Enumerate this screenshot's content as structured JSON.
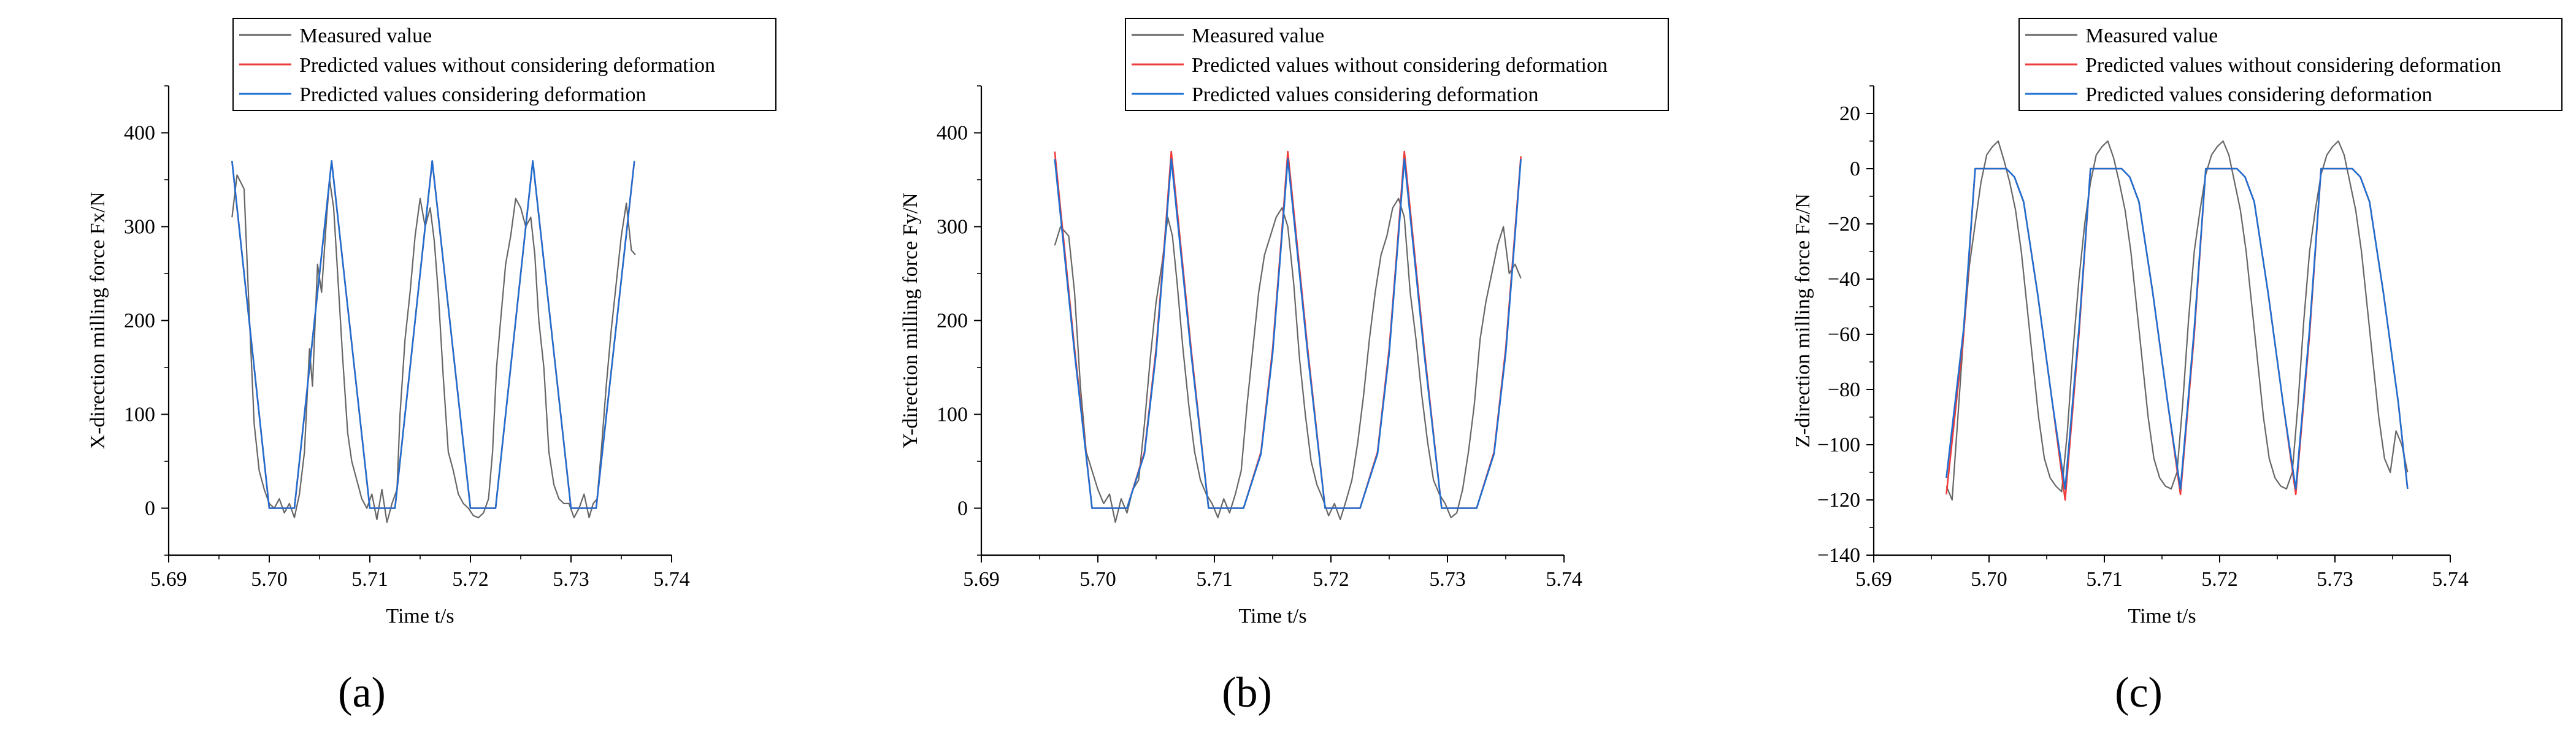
{
  "figure": {
    "panels": [
      "(a)",
      "(b)",
      "(c)"
    ]
  },
  "colors": {
    "measured": "#666666",
    "pred_no_deform": "#ef3b3b",
    "pred_deform": "#1f6fd1",
    "axis": "#000000"
  },
  "chart_data": [
    {
      "type": "line",
      "panel_label": "(a)",
      "xlabel": "Time t/s",
      "ylabel": "X-direction milling force Fx/N",
      "xlim": [
        5.69,
        5.74
      ],
      "ylim": [
        -50,
        450
      ],
      "xticks": [
        5.69,
        5.7,
        5.71,
        5.72,
        5.73,
        5.74
      ],
      "xtick_labels": [
        "5.69",
        "5.70",
        "5.71",
        "5.72",
        "5.73",
        "5.74"
      ],
      "yticks": [
        0,
        100,
        200,
        300,
        400
      ],
      "ytick_labels": [
        "0",
        "100",
        "200",
        "300",
        "400"
      ],
      "legend": {
        "placement": "top-center",
        "entries": [
          "Measured value",
          "Predicted values without considering deformation",
          "Predicted values considering deformation"
        ]
      },
      "series": [
        {
          "name": "Measured value",
          "color": "#666666",
          "x": [
            5.6963,
            5.6968,
            5.6975,
            5.698,
            5.6985,
            5.699,
            5.6995,
            5.7,
            5.7005,
            5.701,
            5.7015,
            5.702,
            5.7025,
            5.703,
            5.7035,
            5.704,
            5.7043,
            5.7048,
            5.7052,
            5.7057,
            5.706,
            5.7064,
            5.7068,
            5.7073,
            5.7078,
            5.7082,
            5.7087,
            5.7092,
            5.7097,
            5.7102,
            5.7107,
            5.7112,
            5.7117,
            5.7122,
            5.7127,
            5.713,
            5.7135,
            5.714,
            5.7145,
            5.715,
            5.7155,
            5.716,
            5.7164,
            5.7168,
            5.7173,
            5.7178,
            5.7183,
            5.7188,
            5.7193,
            5.7198,
            5.7203,
            5.7208,
            5.7213,
            5.7218,
            5.7222,
            5.7226,
            5.723,
            5.7235,
            5.724,
            5.7245,
            5.725,
            5.7255,
            5.726,
            5.7264,
            5.7268,
            5.7273,
            5.7278,
            5.7283,
            5.7288,
            5.7293,
            5.7298,
            5.7303,
            5.7308,
            5.7313,
            5.7318,
            5.7322,
            5.7326,
            5.733,
            5.7335,
            5.734,
            5.7345,
            5.735,
            5.7355,
            5.736,
            5.7364
          ],
          "y": [
            310,
            355,
            340,
            210,
            90,
            40,
            20,
            5,
            0,
            10,
            -5,
            5,
            -10,
            15,
            60,
            170,
            130,
            260,
            230,
            310,
            350,
            320,
            250,
            160,
            80,
            50,
            30,
            10,
            0,
            15,
            -12,
            20,
            -15,
            5,
            20,
            100,
            180,
            230,
            290,
            330,
            300,
            320,
            285,
            230,
            140,
            60,
            40,
            15,
            5,
            0,
            -8,
            -10,
            -5,
            10,
            60,
            150,
            200,
            260,
            290,
            330,
            320,
            300,
            310,
            270,
            200,
            150,
            60,
            25,
            10,
            5,
            5,
            -10,
            0,
            15,
            -10,
            5,
            10,
            60,
            130,
            190,
            240,
            290,
            325,
            275,
            270
          ]
        },
        {
          "name": "Predicted values without considering deformation",
          "color": "#ef3b3b",
          "x": [
            5.6963,
            5.7,
            5.7025,
            5.7062,
            5.71,
            5.7125,
            5.7162,
            5.72,
            5.7225,
            5.7262,
            5.73,
            5.7325,
            5.7363
          ],
          "y": [
            370,
            0,
            0,
            370,
            0,
            0,
            370,
            0,
            0,
            370,
            0,
            0,
            370
          ]
        },
        {
          "name": "Predicted values considering deformation",
          "color": "#1f6fd1",
          "x": [
            5.6963,
            5.7,
            5.7025,
            5.7062,
            5.71,
            5.7125,
            5.7162,
            5.72,
            5.7225,
            5.7262,
            5.73,
            5.7325,
            5.7363
          ],
          "y": [
            370,
            0,
            0,
            370,
            0,
            0,
            370,
            0,
            0,
            370,
            0,
            0,
            370
          ]
        }
      ]
    },
    {
      "type": "line",
      "panel_label": "(b)",
      "xlabel": "Time t/s",
      "ylabel": "Y-direction milling force  Fy/N",
      "xlim": [
        5.69,
        5.74
      ],
      "ylim": [
        -50,
        450
      ],
      "xticks": [
        5.69,
        5.7,
        5.71,
        5.72,
        5.73,
        5.74
      ],
      "xtick_labels": [
        "5.69",
        "5.70",
        "5.71",
        "5.72",
        "5.73",
        "5.74"
      ],
      "yticks": [
        0,
        100,
        200,
        300,
        400
      ],
      "ytick_labels": [
        "0",
        "100",
        "200",
        "300",
        "400"
      ],
      "legend": {
        "placement": "top-center",
        "entries": [
          "Measured value",
          "Predicted values without considering deformation",
          "Predicted values considering deformation"
        ]
      },
      "series": [
        {
          "name": "Measured value",
          "color": "#666666",
          "x": [
            5.6963,
            5.6968,
            5.6975,
            5.698,
            5.6985,
            5.699,
            5.6995,
            5.7,
            5.7005,
            5.701,
            5.7015,
            5.702,
            5.7025,
            5.703,
            5.7035,
            5.704,
            5.7045,
            5.705,
            5.7055,
            5.706,
            5.7064,
            5.7068,
            5.7073,
            5.7078,
            5.7083,
            5.7088,
            5.7093,
            5.7098,
            5.7103,
            5.7108,
            5.7113,
            5.7118,
            5.7123,
            5.7128,
            5.7133,
            5.7138,
            5.7143,
            5.7148,
            5.7153,
            5.7158,
            5.7163,
            5.7168,
            5.7173,
            5.7178,
            5.7183,
            5.7188,
            5.7193,
            5.7198,
            5.7203,
            5.7208,
            5.7213,
            5.7218,
            5.7223,
            5.7228,
            5.7233,
            5.7238,
            5.7243,
            5.7248,
            5.7253,
            5.7258,
            5.7263,
            5.7268,
            5.7273,
            5.7278,
            5.7283,
            5.7288,
            5.7293,
            5.7298,
            5.7303,
            5.7308,
            5.7313,
            5.7318,
            5.7323,
            5.7328,
            5.7333,
            5.7338,
            5.7343,
            5.7348,
            5.7353,
            5.7358,
            5.7363
          ],
          "y": [
            280,
            300,
            290,
            230,
            130,
            60,
            40,
            20,
            5,
            15,
            -15,
            10,
            -5,
            20,
            30,
            90,
            160,
            220,
            260,
            310,
            290,
            240,
            170,
            110,
            60,
            30,
            15,
            5,
            -10,
            10,
            -5,
            15,
            40,
            110,
            170,
            230,
            270,
            290,
            310,
            320,
            300,
            240,
            160,
            100,
            50,
            25,
            10,
            -8,
            5,
            -12,
            8,
            30,
            70,
            120,
            180,
            230,
            270,
            290,
            320,
            330,
            310,
            230,
            180,
            120,
            70,
            30,
            15,
            5,
            -10,
            -5,
            20,
            60,
            110,
            180,
            220,
            250,
            280,
            300,
            250,
            260,
            245
          ]
        },
        {
          "name": "Predicted values without considering deformation",
          "color": "#ef3b3b",
          "x": [
            5.6963,
            5.698,
            5.6995,
            5.7025,
            5.704,
            5.705,
            5.7057,
            5.7063,
            5.708,
            5.7095,
            5.7125,
            5.714,
            5.715,
            5.7157,
            5.7163,
            5.718,
            5.7195,
            5.7225,
            5.724,
            5.725,
            5.7257,
            5.7263,
            5.728,
            5.7295,
            5.7325,
            5.734,
            5.735,
            5.7357,
            5.7363
          ],
          "y": [
            380,
            170,
            0,
            0,
            60,
            170,
            280,
            380,
            170,
            0,
            0,
            60,
            170,
            280,
            380,
            170,
            0,
            0,
            60,
            170,
            280,
            380,
            170,
            0,
            0,
            60,
            170,
            280,
            375
          ]
        },
        {
          "name": "Predicted values considering deformation",
          "color": "#1f6fd1",
          "x": [
            5.6963,
            5.698,
            5.6995,
            5.7025,
            5.704,
            5.705,
            5.7057,
            5.7063,
            5.708,
            5.7095,
            5.7125,
            5.714,
            5.715,
            5.7157,
            5.7163,
            5.718,
            5.7195,
            5.7225,
            5.724,
            5.725,
            5.7257,
            5.7263,
            5.728,
            5.7295,
            5.7325,
            5.734,
            5.735,
            5.7357,
            5.7363
          ],
          "y": [
            372,
            165,
            0,
            0,
            58,
            165,
            275,
            372,
            165,
            0,
            0,
            58,
            165,
            275,
            372,
            165,
            0,
            0,
            58,
            165,
            275,
            372,
            165,
            0,
            0,
            58,
            165,
            275,
            372
          ]
        }
      ]
    },
    {
      "type": "line",
      "panel_label": "(c)",
      "xlabel": "Time t/s",
      "ylabel": "Z-direction milling force Fz/N",
      "xlim": [
        5.69,
        5.74
      ],
      "ylim": [
        -140,
        30
      ],
      "xticks": [
        5.69,
        5.7,
        5.71,
        5.72,
        5.73,
        5.74
      ],
      "xtick_labels": [
        "5.69",
        "5.70",
        "5.71",
        "5.72",
        "5.73",
        "5.74"
      ],
      "yticks": [
        -140,
        -120,
        -100,
        -80,
        -60,
        -40,
        -20,
        0,
        20
      ],
      "ytick_labels": [
        "−140",
        "−120",
        "−100",
        "−80",
        "−60",
        "−40",
        "−20",
        "0",
        "20"
      ],
      "legend": {
        "placement": "top-center",
        "entries": [
          "Measured value",
          "Predicted values without considering deformation",
          "Predicted values considering deformation"
        ]
      },
      "series": [
        {
          "name": "Measured value",
          "color": "#666666",
          "x": [
            5.6963,
            5.6968,
            5.6973,
            5.6978,
            5.6983,
            5.6988,
            5.6993,
            5.6998,
            5.7003,
            5.7008,
            5.7013,
            5.7018,
            5.7023,
            5.7028,
            5.7033,
            5.7038,
            5.7043,
            5.7048,
            5.7053,
            5.7058,
            5.7063,
            5.7068,
            5.7073,
            5.7078,
            5.7083,
            5.7088,
            5.7093,
            5.7098,
            5.7103,
            5.7108,
            5.7113,
            5.7118,
            5.7123,
            5.7128,
            5.7133,
            5.7138,
            5.7143,
            5.7148,
            5.7153,
            5.7158,
            5.7163,
            5.7168,
            5.7173,
            5.7178,
            5.7183,
            5.7188,
            5.7193,
            5.7198,
            5.7203,
            5.7208,
            5.7213,
            5.7218,
            5.7223,
            5.7228,
            5.7233,
            5.7238,
            5.7243,
            5.7248,
            5.7253,
            5.7258,
            5.7263,
            5.7268,
            5.7273,
            5.7278,
            5.7283,
            5.7288,
            5.7293,
            5.7298,
            5.7303,
            5.7308,
            5.7313,
            5.7318,
            5.7323,
            5.7328,
            5.7333,
            5.7338,
            5.7343,
            5.7348,
            5.7353,
            5.7358,
            5.7363
          ],
          "y": [
            -115,
            -120,
            -90,
            -60,
            -35,
            -20,
            -5,
            5,
            8,
            10,
            3,
            -5,
            -15,
            -30,
            -50,
            -70,
            -90,
            -105,
            -112,
            -115,
            -117,
            -95,
            -65,
            -40,
            -20,
            -5,
            5,
            8,
            10,
            4,
            -5,
            -15,
            -30,
            -50,
            -70,
            -90,
            -105,
            -112,
            -115,
            -116,
            -110,
            -85,
            -55,
            -30,
            -15,
            -2,
            5,
            8,
            10,
            5,
            -5,
            -15,
            -30,
            -50,
            -70,
            -90,
            -105,
            -112,
            -115,
            -116,
            -110,
            -85,
            -55,
            -30,
            -15,
            -2,
            5,
            8,
            10,
            5,
            -5,
            -15,
            -30,
            -50,
            -70,
            -90,
            -105,
            -110,
            -95,
            -100,
            -110
          ]
        },
        {
          "name": "Predicted values without considering deformation",
          "color": "#ef3b3b",
          "x": [
            5.6963,
            5.6978,
            5.6988,
            5.6998,
            5.7008,
            5.7015,
            5.7022,
            5.703,
            5.7042,
            5.7055,
            5.7066,
            5.7078,
            5.7088,
            5.7098,
            5.7108,
            5.7115,
            5.7122,
            5.713,
            5.7142,
            5.7155,
            5.7166,
            5.7178,
            5.7188,
            5.7198,
            5.7208,
            5.7215,
            5.7222,
            5.723,
            5.7242,
            5.7255,
            5.7266,
            5.7278,
            5.7288,
            5.7298,
            5.7308,
            5.7315,
            5.7322,
            5.733,
            5.7342,
            5.7355,
            5.7363
          ],
          "y": [
            -118,
            -60,
            0,
            0,
            0,
            0,
            -3,
            -12,
            -45,
            -85,
            -120,
            -60,
            0,
            0,
            0,
            0,
            -3,
            -12,
            -45,
            -85,
            -118,
            -60,
            0,
            0,
            0,
            0,
            -3,
            -12,
            -45,
            -85,
            -118,
            -60,
            0,
            0,
            0,
            0,
            -3,
            -12,
            -45,
            -85,
            -116
          ]
        },
        {
          "name": "Predicted values considering deformation",
          "color": "#1f6fd1",
          "x": [
            5.6963,
            5.6978,
            5.6988,
            5.6998,
            5.7008,
            5.7015,
            5.7022,
            5.703,
            5.7042,
            5.7055,
            5.7066,
            5.7078,
            5.7088,
            5.7098,
            5.7108,
            5.7115,
            5.7122,
            5.713,
            5.7142,
            5.7155,
            5.7166,
            5.7178,
            5.7188,
            5.7198,
            5.7208,
            5.7215,
            5.7222,
            5.723,
            5.7242,
            5.7255,
            5.7266,
            5.7278,
            5.7288,
            5.7298,
            5.7308,
            5.7315,
            5.7322,
            5.733,
            5.7342,
            5.7355,
            5.7363
          ],
          "y": [
            -112,
            -58,
            0,
            0,
            0,
            0,
            -3,
            -12,
            -45,
            -85,
            -116,
            -58,
            0,
            0,
            0,
            0,
            -3,
            -12,
            -45,
            -85,
            -116,
            -58,
            0,
            0,
            0,
            0,
            -3,
            -12,
            -45,
            -85,
            -116,
            -58,
            0,
            0,
            0,
            0,
            -3,
            -12,
            -45,
            -85,
            -116
          ]
        }
      ]
    }
  ]
}
